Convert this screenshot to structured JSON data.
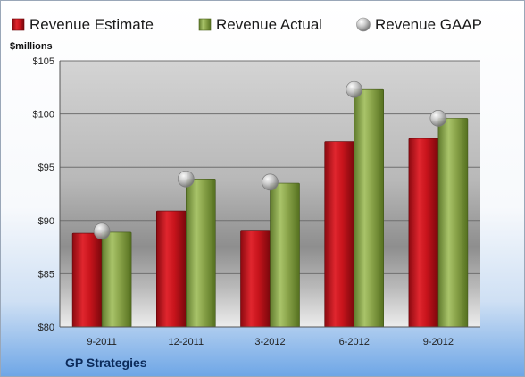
{
  "chart_data": {
    "type": "bar",
    "title": "GP Strategies",
    "ylabel": "$millions",
    "categories": [
      "9-2011",
      "12-2011",
      "3-2012",
      "6-2012",
      "9-2012"
    ],
    "series": [
      {
        "name": "Revenue Estimate",
        "kind": "bar",
        "color": "#c0141c",
        "values": [
          88.8,
          90.9,
          89.0,
          97.4,
          97.7
        ]
      },
      {
        "name": "Revenue Actual",
        "kind": "bar",
        "color": "#8faa4c",
        "values": [
          88.9,
          93.9,
          93.5,
          102.3,
          99.6
        ]
      },
      {
        "name": "Revenue GAAP",
        "kind": "marker",
        "color": "#a6a6a6",
        "values": [
          89.0,
          93.9,
          93.6,
          102.3,
          99.6
        ]
      }
    ],
    "ylim": [
      80,
      105
    ],
    "yticks": [
      80,
      85,
      90,
      95,
      100,
      105
    ],
    "ytick_labels": [
      "$80",
      "$85",
      "$90",
      "$95",
      "$100",
      "$105"
    ],
    "grid": true,
    "legend_position": "top"
  }
}
